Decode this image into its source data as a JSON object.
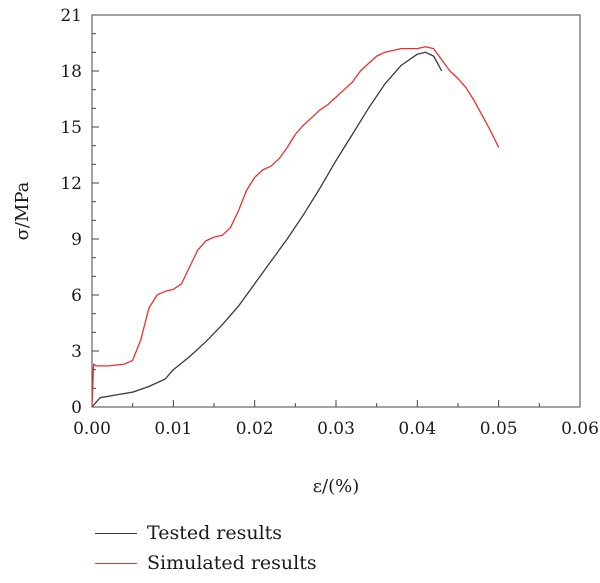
{
  "chart_data": {
    "type": "line",
    "title": "",
    "xlabel": "ε/(%)",
    "ylabel": "σ/MPa",
    "xlim": [
      0.0,
      0.06
    ],
    "ylim": [
      0,
      21
    ],
    "x_ticks": [
      0.0,
      0.01,
      0.02,
      0.03,
      0.04,
      0.05,
      0.06
    ],
    "x_tick_labels": [
      "0.00",
      "0.01",
      "0.02",
      "0.03",
      "0.04",
      "0.05",
      "0.06"
    ],
    "y_ticks": [
      0,
      3,
      6,
      9,
      12,
      15,
      18,
      21
    ],
    "y_tick_labels": [
      "0",
      "3",
      "6",
      "9",
      "12",
      "15",
      "18",
      "21"
    ],
    "grid": false,
    "legend_position": "bottom-left, below plot",
    "series": [
      {
        "name": "Tested results",
        "color": "#3a3a3a",
        "x": [
          0.0,
          0.001,
          0.003,
          0.005,
          0.007,
          0.009,
          0.01,
          0.012,
          0.014,
          0.016,
          0.018,
          0.02,
          0.022,
          0.024,
          0.026,
          0.028,
          0.03,
          0.032,
          0.034,
          0.036,
          0.038,
          0.04,
          0.041,
          0.042,
          0.0425,
          0.043
        ],
        "y": [
          0.0,
          0.5,
          0.65,
          0.8,
          1.1,
          1.5,
          2.0,
          2.7,
          3.5,
          4.4,
          5.4,
          6.6,
          7.8,
          9.0,
          10.3,
          11.7,
          13.2,
          14.6,
          16.0,
          17.3,
          18.3,
          18.9,
          19.0,
          18.8,
          18.4,
          18.0
        ]
      },
      {
        "name": "Simulated results",
        "color": "#e8312f",
        "x": [
          0.0,
          0.0002,
          0.0005,
          0.001,
          0.002,
          0.003,
          0.004,
          0.005,
          0.006,
          0.007,
          0.008,
          0.009,
          0.01,
          0.011,
          0.012,
          0.013,
          0.014,
          0.015,
          0.016,
          0.017,
          0.018,
          0.019,
          0.02,
          0.021,
          0.022,
          0.023,
          0.024,
          0.025,
          0.026,
          0.027,
          0.028,
          0.029,
          0.03,
          0.031,
          0.032,
          0.033,
          0.034,
          0.035,
          0.036,
          0.037,
          0.038,
          0.039,
          0.04,
          0.041,
          0.042,
          0.043,
          0.044,
          0.045,
          0.046,
          0.047,
          0.048,
          0.049,
          0.05
        ],
        "y": [
          0.0,
          2.3,
          2.2,
          2.2,
          2.2,
          2.25,
          2.3,
          2.5,
          3.6,
          5.3,
          6.0,
          6.2,
          6.3,
          6.6,
          7.5,
          8.4,
          8.9,
          9.1,
          9.2,
          9.6,
          10.5,
          11.6,
          12.3,
          12.7,
          12.9,
          13.3,
          13.9,
          14.6,
          15.1,
          15.5,
          15.9,
          16.2,
          16.6,
          17.0,
          17.4,
          18.0,
          18.4,
          18.8,
          19.0,
          19.1,
          19.2,
          19.2,
          19.2,
          19.3,
          19.2,
          18.6,
          18.0,
          17.6,
          17.1,
          16.4,
          15.6,
          14.8,
          13.9
        ]
      }
    ]
  }
}
